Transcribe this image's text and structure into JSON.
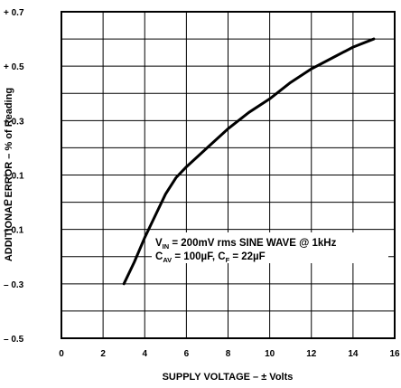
{
  "chart_data": {
    "type": "line",
    "title": "",
    "xlabel": "SUPPLY VOLTAGE – ± Volts",
    "ylabel": "ADDITIONAL ERROR – % of Reading",
    "xlim": [
      0,
      16
    ],
    "ylim": [
      -0.5,
      0.7
    ],
    "x_ticks": [
      0,
      2,
      4,
      6,
      8,
      10,
      12,
      14,
      16
    ],
    "x_tick_labels": [
      "0",
      "2",
      "4",
      "6",
      "8",
      "10",
      "12",
      "14",
      "16"
    ],
    "y_ticks": [
      0.7,
      0.5,
      0.3,
      0.1,
      0,
      -0.1,
      -0.3,
      -0.5
    ],
    "y_tick_labels": [
      "+ 0.7",
      "+ 0.5",
      "+ 0.3",
      "+ 0.1",
      "0",
      "– 0.1",
      "– 0.3",
      "– 0.5"
    ],
    "grid": true,
    "series": [
      {
        "x": [
          3,
          3.5,
          4,
          4.5,
          5,
          5.5,
          6,
          7,
          8,
          9,
          10,
          11,
          12,
          13,
          14,
          15
        ],
        "y": [
          -0.3,
          -0.22,
          -0.13,
          -0.05,
          0.03,
          0.09,
          0.13,
          0.2,
          0.27,
          0.33,
          0.38,
          0.44,
          0.49,
          0.53,
          0.57,
          0.6
        ]
      }
    ],
    "annotations": [
      {
        "main1": "V",
        "sub1": "IN",
        "rest1": " = 200mV rms SINE WAVE @ 1kHz"
      },
      {
        "main1": "C",
        "sub1": "AV",
        "rest1": " = 100µF, C",
        "sub2": "F",
        "rest2": " = 22µF"
      }
    ]
  }
}
